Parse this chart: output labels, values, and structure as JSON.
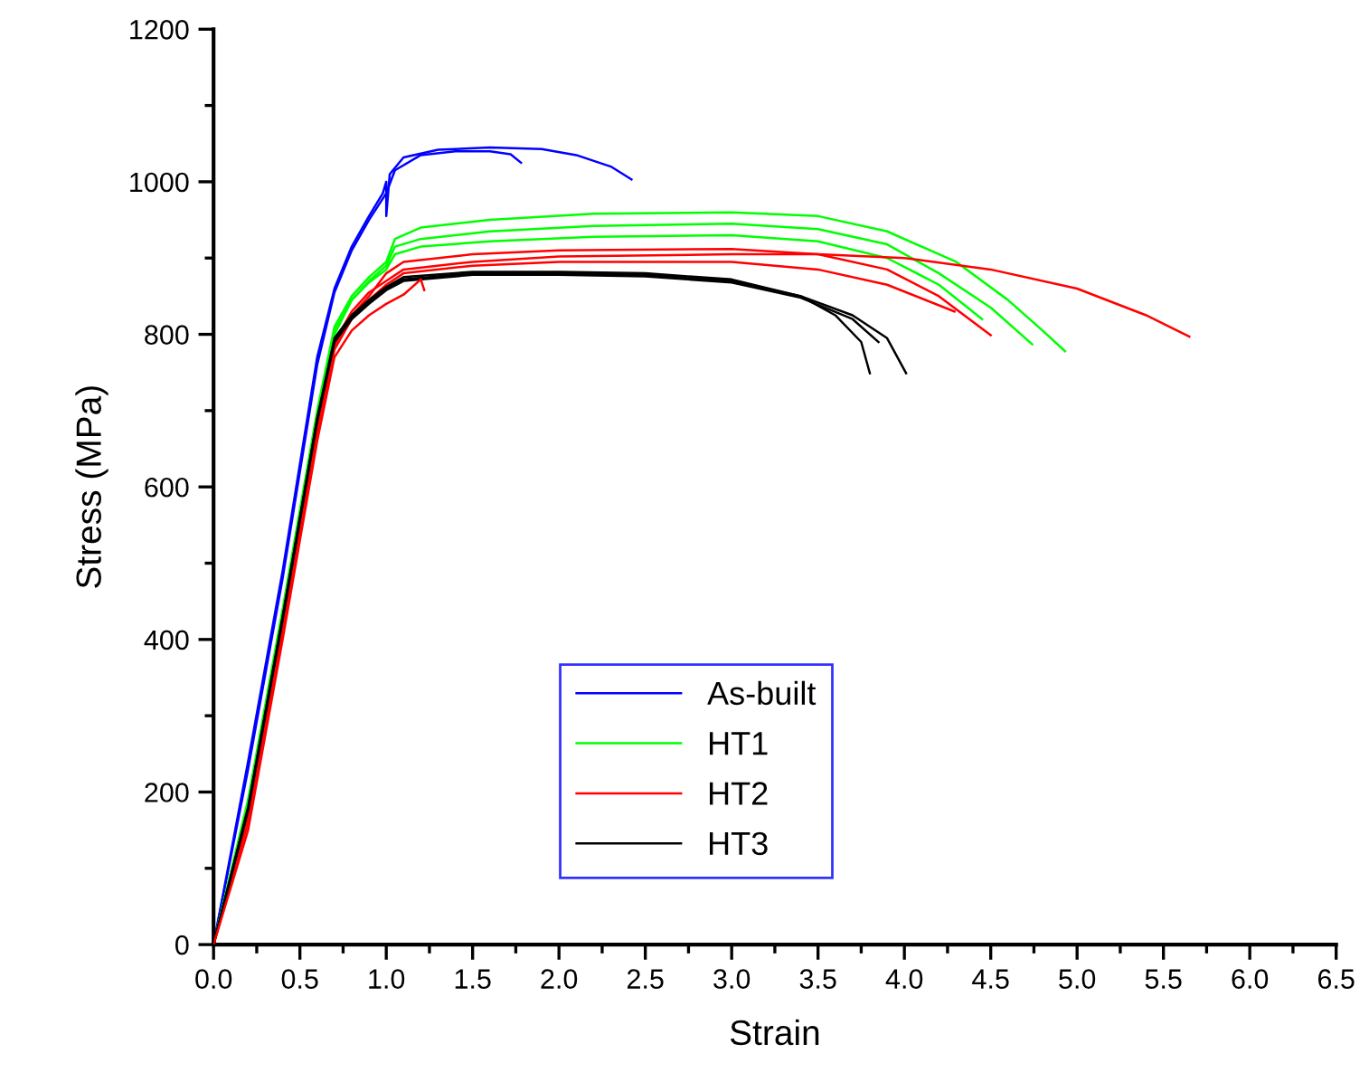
{
  "chart_data": {
    "type": "line",
    "xlabel": "Strain",
    "ylabel": "Stress (MPa)",
    "xlim": [
      0,
      6.5
    ],
    "ylim": [
      0,
      1200
    ],
    "xticks": [
      {
        "value": 0,
        "label": "0.0"
      },
      0.5,
      {
        "value": 1,
        "label": "1.0"
      },
      1.5,
      {
        "value": 2,
        "label": "2.0"
      },
      2.5,
      {
        "value": 3,
        "label": "3.0"
      },
      3.5,
      {
        "value": 4,
        "label": "4.0"
      },
      4.5,
      {
        "value": 5,
        "label": "5.0"
      },
      5.5,
      {
        "value": 6,
        "label": "6.0"
      },
      6.5
    ],
    "yticks": [
      0,
      200,
      400,
      600,
      800,
      1000,
      1200
    ],
    "grid": false,
    "legend": "bottom",
    "marker": "none",
    "line_style": "solid",
    "series": [
      {
        "name": "As-built",
        "color": "#0000ff",
        "x": [
          0,
          0.2,
          0.4,
          0.5,
          0.6,
          0.7,
          0.8,
          0.9,
          0.98,
          1.0,
          1.0,
          1.02,
          1.1,
          1.3,
          1.6,
          1.9,
          2.1,
          2.3,
          2.42
        ],
        "values": [
          0,
          240,
          490,
          630,
          770,
          860,
          915,
          955,
          985,
          1000,
          955,
          1010,
          1032,
          1042,
          1045,
          1043,
          1035,
          1020,
          1003
        ]
      },
      {
        "color": "#0000ff",
        "x": [
          0,
          0.2,
          0.4,
          0.5,
          0.6,
          0.7,
          0.8,
          0.9,
          1.0,
          1.05,
          1.2,
          1.4,
          1.6,
          1.72,
          1.78
        ],
        "values": [
          0,
          230,
          480,
          620,
          760,
          855,
          910,
          950,
          985,
          1015,
          1035,
          1040,
          1040,
          1036,
          1025
        ]
      },
      {
        "name": "HT1",
        "color": "#00ff00",
        "x": [
          0,
          0.2,
          0.4,
          0.6,
          0.7,
          0.8,
          0.9,
          1.0,
          1.05,
          1.2,
          1.6,
          2.2,
          3.0,
          3.5,
          3.9,
          4.3,
          4.6,
          4.8,
          4.93
        ],
        "values": [
          0,
          190,
          440,
          700,
          810,
          850,
          875,
          895,
          925,
          940,
          950,
          958,
          960,
          955,
          935,
          895,
          845,
          805,
          778
        ]
      },
      {
        "color": "#00ff00",
        "x": [
          0,
          0.2,
          0.4,
          0.6,
          0.7,
          0.8,
          0.9,
          1.0,
          1.05,
          1.2,
          1.6,
          2.2,
          3.0,
          3.5,
          3.9,
          4.2,
          4.5,
          4.74
        ],
        "values": [
          0,
          180,
          430,
          690,
          800,
          845,
          870,
          890,
          915,
          925,
          935,
          942,
          945,
          938,
          918,
          880,
          835,
          787
        ]
      },
      {
        "color": "#00ff00",
        "x": [
          0,
          0.2,
          0.4,
          0.6,
          0.7,
          0.8,
          0.9,
          1.0,
          1.05,
          1.2,
          1.6,
          2.2,
          3.0,
          3.5,
          3.9,
          4.2,
          4.45
        ],
        "values": [
          0,
          185,
          435,
          695,
          805,
          845,
          868,
          885,
          905,
          915,
          922,
          928,
          930,
          922,
          900,
          865,
          820
        ]
      },
      {
        "name": "HT2",
        "color": "#ff0000",
        "x": [
          0,
          0.2,
          0.4,
          0.6,
          0.7,
          0.8,
          0.9,
          1.0,
          1.1,
          1.5,
          2.0,
          3.0,
          3.5,
          4.0,
          4.5,
          5.0,
          5.4,
          5.65
        ],
        "values": [
          0,
          170,
          420,
          680,
          790,
          830,
          855,
          870,
          885,
          895,
          902,
          905,
          905,
          900,
          885,
          860,
          825,
          797
        ]
      },
      {
        "color": "#ff0000",
        "x": [
          0,
          0.2,
          0.4,
          0.6,
          0.7,
          0.8,
          0.9,
          1.0,
          1.1,
          1.5,
          2.0,
          3.0,
          3.5,
          3.9,
          4.2,
          4.5
        ],
        "values": [
          0,
          165,
          415,
          675,
          785,
          825,
          850,
          880,
          895,
          905,
          910,
          912,
          905,
          885,
          850,
          799
        ]
      },
      {
        "color": "#ff0000",
        "x": [
          0,
          0.2,
          0.4,
          0.6,
          0.7,
          0.8,
          0.9,
          1.0,
          1.1,
          1.5,
          2.0,
          3.0,
          3.5,
          3.9,
          4.29
        ],
        "values": [
          0,
          160,
          410,
          670,
          780,
          820,
          845,
          865,
          880,
          890,
          895,
          895,
          885,
          865,
          830
        ]
      },
      {
        "color": "#ff0000",
        "x": [
          0,
          0.2,
          0.4,
          0.6,
          0.7,
          0.8,
          0.9,
          1.0,
          1.1,
          1.2,
          1.22
        ],
        "values": [
          0,
          150,
          400,
          660,
          770,
          805,
          825,
          840,
          852,
          872,
          858
        ]
      },
      {
        "name": "HT3",
        "color": "#000000",
        "x": [
          0,
          0.2,
          0.4,
          0.6,
          0.7,
          0.8,
          0.9,
          1.0,
          1.1,
          1.5,
          2.0,
          2.5,
          3.0,
          3.4,
          3.6,
          3.75,
          3.8
        ],
        "values": [
          0,
          180,
          430,
          690,
          795,
          825,
          845,
          862,
          875,
          882,
          882,
          880,
          872,
          850,
          825,
          790,
          749
        ]
      },
      {
        "color": "#000000",
        "x": [
          0,
          0.2,
          0.4,
          0.6,
          0.7,
          0.8,
          0.9,
          1.0,
          1.1,
          1.5,
          2.0,
          2.5,
          3.0,
          3.4,
          3.7,
          3.9,
          4.01
        ],
        "values": [
          0,
          178,
          428,
          688,
          792,
          822,
          842,
          860,
          872,
          880,
          880,
          878,
          870,
          850,
          825,
          795,
          749
        ]
      },
      {
        "color": "#000000",
        "x": [
          0,
          0.2,
          0.4,
          0.6,
          0.7,
          0.8,
          0.9,
          1.0,
          1.1,
          1.5,
          2.0,
          2.5,
          3.0,
          3.4,
          3.7,
          3.85
        ],
        "values": [
          0,
          176,
          426,
          686,
          790,
          820,
          840,
          858,
          870,
          878,
          878,
          876,
          868,
          848,
          820,
          790
        ]
      }
    ]
  }
}
